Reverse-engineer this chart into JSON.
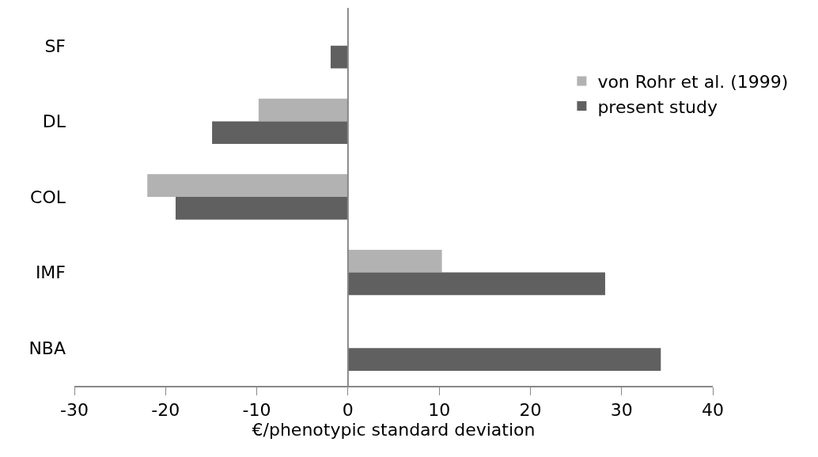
{
  "chart_data": {
    "type": "bar",
    "orientation": "horizontal",
    "xlabel": "€/phenotypic standard deviation",
    "categories": [
      "SF",
      "DL",
      "COL",
      "IMF",
      "NBA"
    ],
    "series": [
      {
        "name": "von Rohr et al. (1999)",
        "color": "#b2b2b2",
        "values": [
          null,
          -9.8,
          -22.0,
          10.3,
          null
        ]
      },
      {
        "name": "present study",
        "color": "#606060",
        "values": [
          -1.9,
          -14.9,
          -18.9,
          28.2,
          34.3
        ]
      }
    ],
    "xlim": [
      -30,
      40
    ],
    "xticks": [
      -30,
      -20,
      -10,
      0,
      10,
      20,
      30,
      40
    ],
    "legend": "right"
  }
}
